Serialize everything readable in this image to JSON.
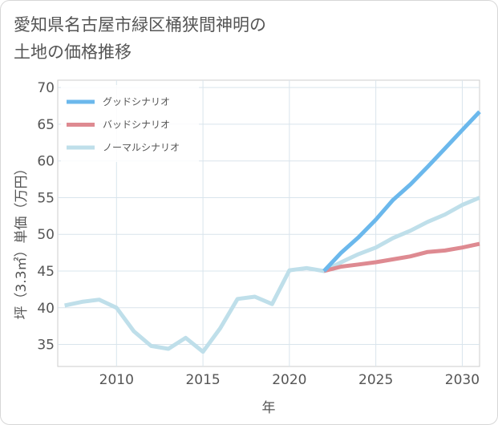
{
  "title_lines": [
    "愛知県名古屋市緑区桶狭間神明の",
    "土地の価格推移"
  ],
  "chart_data": {
    "type": "line",
    "xlabel": "年",
    "ylabel": "坪（3.3㎡）単価（万円）",
    "xlim": [
      2006.6,
      2031
    ],
    "ylim": [
      32,
      71
    ],
    "xticks": [
      2010,
      2015,
      2020,
      2025,
      2030
    ],
    "yticks": [
      35,
      40,
      45,
      50,
      55,
      60,
      65,
      70
    ],
    "grid": true,
    "legend_position": "top-left",
    "series": [
      {
        "name": "グッドシナリオ",
        "color": "#6bb8ec",
        "x": [
          2022,
          2023,
          2024,
          2025,
          2026,
          2027,
          2028,
          2029,
          2030,
          2031
        ],
        "y": [
          45.0,
          47.5,
          49.6,
          52.0,
          54.7,
          56.8,
          59.2,
          61.7,
          64.2,
          66.7
        ]
      },
      {
        "name": "バッドシナリオ",
        "color": "#de8a91",
        "x": [
          2022,
          2023,
          2024,
          2025,
          2026,
          2027,
          2028,
          2029,
          2030,
          2031
        ],
        "y": [
          45.0,
          45.6,
          45.9,
          46.2,
          46.6,
          47.0,
          47.6,
          47.8,
          48.2,
          48.7
        ]
      },
      {
        "name": "ノーマルシナリオ",
        "color": "#bfdfea",
        "x": [
          2007,
          2008,
          2009,
          2010,
          2011,
          2012,
          2013,
          2014,
          2015,
          2016,
          2017,
          2018,
          2019,
          2020,
          2021,
          2022,
          2023,
          2024,
          2025,
          2026,
          2027,
          2028,
          2029,
          2030,
          2031
        ],
        "y": [
          40.3,
          40.8,
          41.1,
          40.0,
          36.8,
          34.8,
          34.4,
          35.9,
          34.0,
          37.2,
          41.2,
          41.5,
          40.5,
          45.1,
          45.4,
          45.0,
          46.2,
          47.3,
          48.2,
          49.5,
          50.5,
          51.7,
          52.7,
          54.0,
          55.0
        ]
      }
    ]
  }
}
